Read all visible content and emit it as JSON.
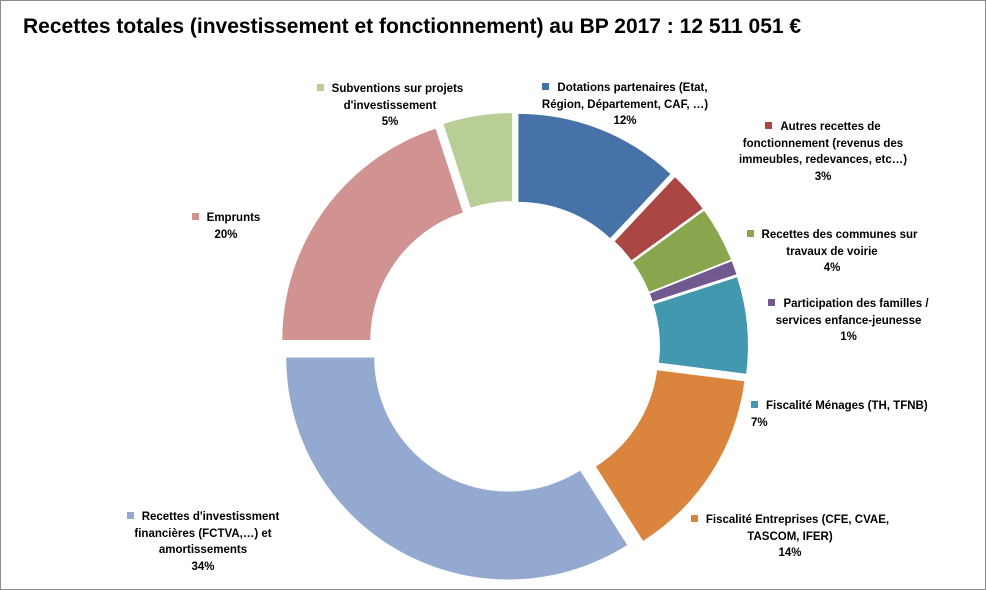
{
  "chart_data": {
    "type": "pie",
    "style": "donut-exploded",
    "title": "Recettes totales (investissement et fonctionnement) au BP 2017 : 12 511 051 €",
    "slices": [
      {
        "name": "Dotations partenaires (Etat, Région, Département, CAF, …)",
        "lines": [
          "Dotations partenaires (Etat,",
          "Région, Département, CAF, …)"
        ],
        "value": 12,
        "percent_label": "12%",
        "color": "#4672a8"
      },
      {
        "name": "Autres recettes de fonctionnement (revenus des immeubles, redevances, etc…)",
        "lines": [
          "Autres recettes de",
          "fonctionnement (revenus des",
          "immeubles, redevances, etc…)"
        ],
        "value": 3,
        "percent_label": "3%",
        "color": "#aa4643"
      },
      {
        "name": "Recettes des communes sur travaux de voirie",
        "lines": [
          "Recettes des communes sur",
          "travaux de voirie"
        ],
        "value": 4,
        "percent_label": "4%",
        "color": "#89a54e"
      },
      {
        "name": "Participation des familles / services enfance-jeunesse",
        "lines": [
          "Participation des familles /",
          "services enfance-jeunesse"
        ],
        "value": 1,
        "percent_label": "1%",
        "color": "#71588f"
      },
      {
        "name": "Fiscalité Ménages (TH, TFNB)",
        "lines": [
          "Fiscalité Ménages (TH, TFNB)"
        ],
        "value": 7,
        "percent_label": "7%",
        "color": "#4198af"
      },
      {
        "name": "Fiscalité Entreprises (CFE, CVAE, TASCOM, IFER)",
        "lines": [
          "Fiscalité Entreprises (CFE, CVAE,",
          "TASCOM, IFER)"
        ],
        "value": 14,
        "percent_label": "14%",
        "color": "#db843d"
      },
      {
        "name": "Recettes d'investissment financières (FCTVA,…) et amortissements",
        "lines": [
          "Recettes d'investissment",
          "financières (FCTVA,…) et",
          "amortissements"
        ],
        "value": 34,
        "percent_label": "34%",
        "color": "#93a9cf"
      },
      {
        "name": "Emprunts",
        "lines": [
          "Emprunts"
        ],
        "value": 20,
        "percent_label": "20%",
        "color": "#d19392"
      },
      {
        "name": "Subventions sur projets d'investissement",
        "lines": [
          "Subventions sur projets",
          "d'investissement"
        ],
        "value": 5,
        "percent_label": "5%",
        "color": "#b9cd96"
      }
    ]
  }
}
